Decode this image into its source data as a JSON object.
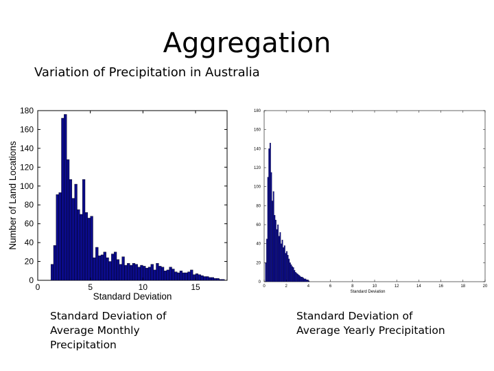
{
  "title": "Aggregation",
  "subtitle": "Variation of Precipitation in Australia",
  "captions": {
    "left": [
      "Standard Deviation of",
      "Average Monthly",
      "Precipitation"
    ],
    "right": [
      "Standard Deviation of",
      "Average Yearly Precipitation"
    ]
  },
  "colors": {
    "bar_fill": "#0b0b8a",
    "bar_edge": "#000000",
    "axis": "#000000"
  },
  "chart_data": [
    {
      "type": "bar",
      "title": "",
      "xlabel": "Standard Deviation",
      "ylabel": "Number of Land Locations",
      "xlim": [
        0,
        18
      ],
      "ylim": [
        0,
        180
      ],
      "xticks": [
        0,
        5,
        10,
        15
      ],
      "yticks": [
        0,
        20,
        40,
        60,
        80,
        100,
        120,
        140,
        160,
        180
      ],
      "bin_width": 0.25,
      "x": [
        1.25,
        1.5,
        1.75,
        2.0,
        2.25,
        2.5,
        2.75,
        3.0,
        3.25,
        3.5,
        3.75,
        4.0,
        4.25,
        4.5,
        4.75,
        5.0,
        5.25,
        5.5,
        5.75,
        6.0,
        6.25,
        6.5,
        6.75,
        7.0,
        7.25,
        7.5,
        7.75,
        8.0,
        8.25,
        8.5,
        8.75,
        9.0,
        9.25,
        9.5,
        9.75,
        10.0,
        10.25,
        10.5,
        10.75,
        11.0,
        11.25,
        11.5,
        11.75,
        12.0,
        12.25,
        12.5,
        12.75,
        13.0,
        13.25,
        13.5,
        13.75,
        14.0,
        14.25,
        14.5,
        14.75,
        15.0,
        15.25,
        15.5,
        15.75,
        16.0,
        16.25,
        16.5,
        16.75,
        17.0,
        17.25,
        17.5
      ],
      "values": [
        17,
        37,
        91,
        93,
        172,
        176,
        128,
        107,
        87,
        102,
        75,
        70,
        107,
        72,
        66,
        68,
        24,
        35,
        26,
        27,
        30,
        24,
        20,
        28,
        30,
        22,
        17,
        25,
        16,
        18,
        16,
        18,
        17,
        14,
        16,
        15,
        13,
        14,
        17,
        11,
        18,
        15,
        14,
        10,
        11,
        14,
        12,
        9,
        8,
        10,
        8,
        8,
        9,
        11,
        6,
        7,
        6,
        5,
        4,
        4,
        3,
        3,
        2,
        2,
        1,
        1
      ]
    },
    {
      "type": "bar",
      "title": "",
      "xlabel": "Standard Deviation",
      "ylabel": "",
      "xlim": [
        0,
        20
      ],
      "ylim": [
        0,
        180
      ],
      "xticks": [
        0,
        2,
        4,
        6,
        8,
        10,
        12,
        14,
        16,
        18,
        20
      ],
      "yticks": [
        0,
        20,
        40,
        60,
        80,
        100,
        120,
        140,
        160,
        180
      ],
      "bin_width": 0.1,
      "x": [
        0.1,
        0.2,
        0.3,
        0.4,
        0.5,
        0.6,
        0.7,
        0.8,
        0.9,
        1.0,
        1.1,
        1.2,
        1.3,
        1.4,
        1.5,
        1.6,
        1.7,
        1.8,
        1.9,
        2.0,
        2.1,
        2.2,
        2.3,
        2.4,
        2.5,
        2.6,
        2.7,
        2.8,
        2.9,
        3.0,
        3.1,
        3.2,
        3.3,
        3.4,
        3.5,
        3.6,
        3.7,
        3.8,
        3.9,
        4.0
      ],
      "values": [
        20,
        45,
        110,
        140,
        146,
        115,
        85,
        95,
        70,
        65,
        55,
        60,
        48,
        52,
        40,
        44,
        36,
        38,
        30,
        32,
        28,
        24,
        20,
        18,
        16,
        15,
        12,
        10,
        9,
        8,
        7,
        6,
        5,
        5,
        4,
        3,
        3,
        2,
        2,
        1
      ]
    }
  ]
}
